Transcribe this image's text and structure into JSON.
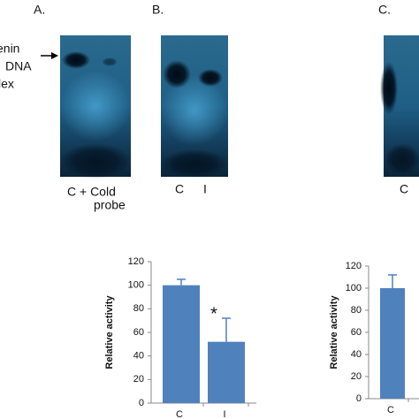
{
  "panels": {
    "a": {
      "label": "A.",
      "side_label": [
        "enin",
        "DNA",
        "lex"
      ],
      "lanes": [
        "C + Cold",
        "probe"
      ]
    },
    "b": {
      "label": "B.",
      "lanes": [
        "C",
        "I"
      ]
    },
    "c": {
      "label": "C.",
      "lanes": [
        "C"
      ]
    }
  },
  "chart_data": [
    {
      "type": "bar",
      "ylabel": "Relative activity",
      "categories": [
        "C",
        "I"
      ],
      "values": [
        100,
        52
      ],
      "errors": [
        5,
        20
      ],
      "annotation": "*",
      "color": "#4f81bd",
      "ylim": [
        0,
        120
      ],
      "yticks": [
        0,
        20,
        40,
        60,
        80,
        100,
        120
      ]
    },
    {
      "type": "bar",
      "ylabel": "Relative activity",
      "categories": [
        "C"
      ],
      "values": [
        100
      ],
      "errors": [
        12
      ],
      "color": "#4f81bd",
      "ylim": [
        0,
        120
      ],
      "yticks": [
        0,
        20,
        40,
        60,
        80,
        100,
        120
      ]
    }
  ]
}
